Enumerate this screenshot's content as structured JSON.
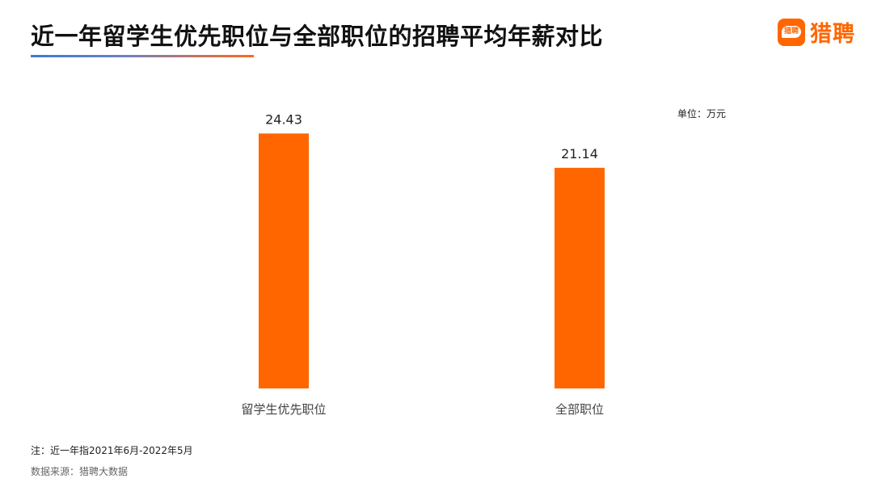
{
  "header": {
    "title": "近一年留学生优先职位与全部职位的招聘平均年薪对比",
    "brand_name": "猎聘",
    "brand_icon_text": "猎聘"
  },
  "colors": {
    "bar": "#ff6600",
    "brand": "#ff6600",
    "underline_start": "#3a7bd5",
    "underline_end": "#ff6a1a"
  },
  "chart_data": {
    "type": "bar",
    "title": "近一年留学生优先职位与全部职位的招聘平均年薪对比",
    "unit_label": "单位：万元",
    "categories": [
      "留学生优先职位",
      "全部职位"
    ],
    "values": [
      24.43,
      21.14
    ],
    "data_labels": [
      "24.43",
      "21.14"
    ],
    "ylim": [
      0,
      26
    ],
    "grid": false,
    "legend": "none"
  },
  "footer": {
    "note": "注：近一年指2021年6月-2022年5月",
    "source": "数据来源：猎聘大数据"
  }
}
